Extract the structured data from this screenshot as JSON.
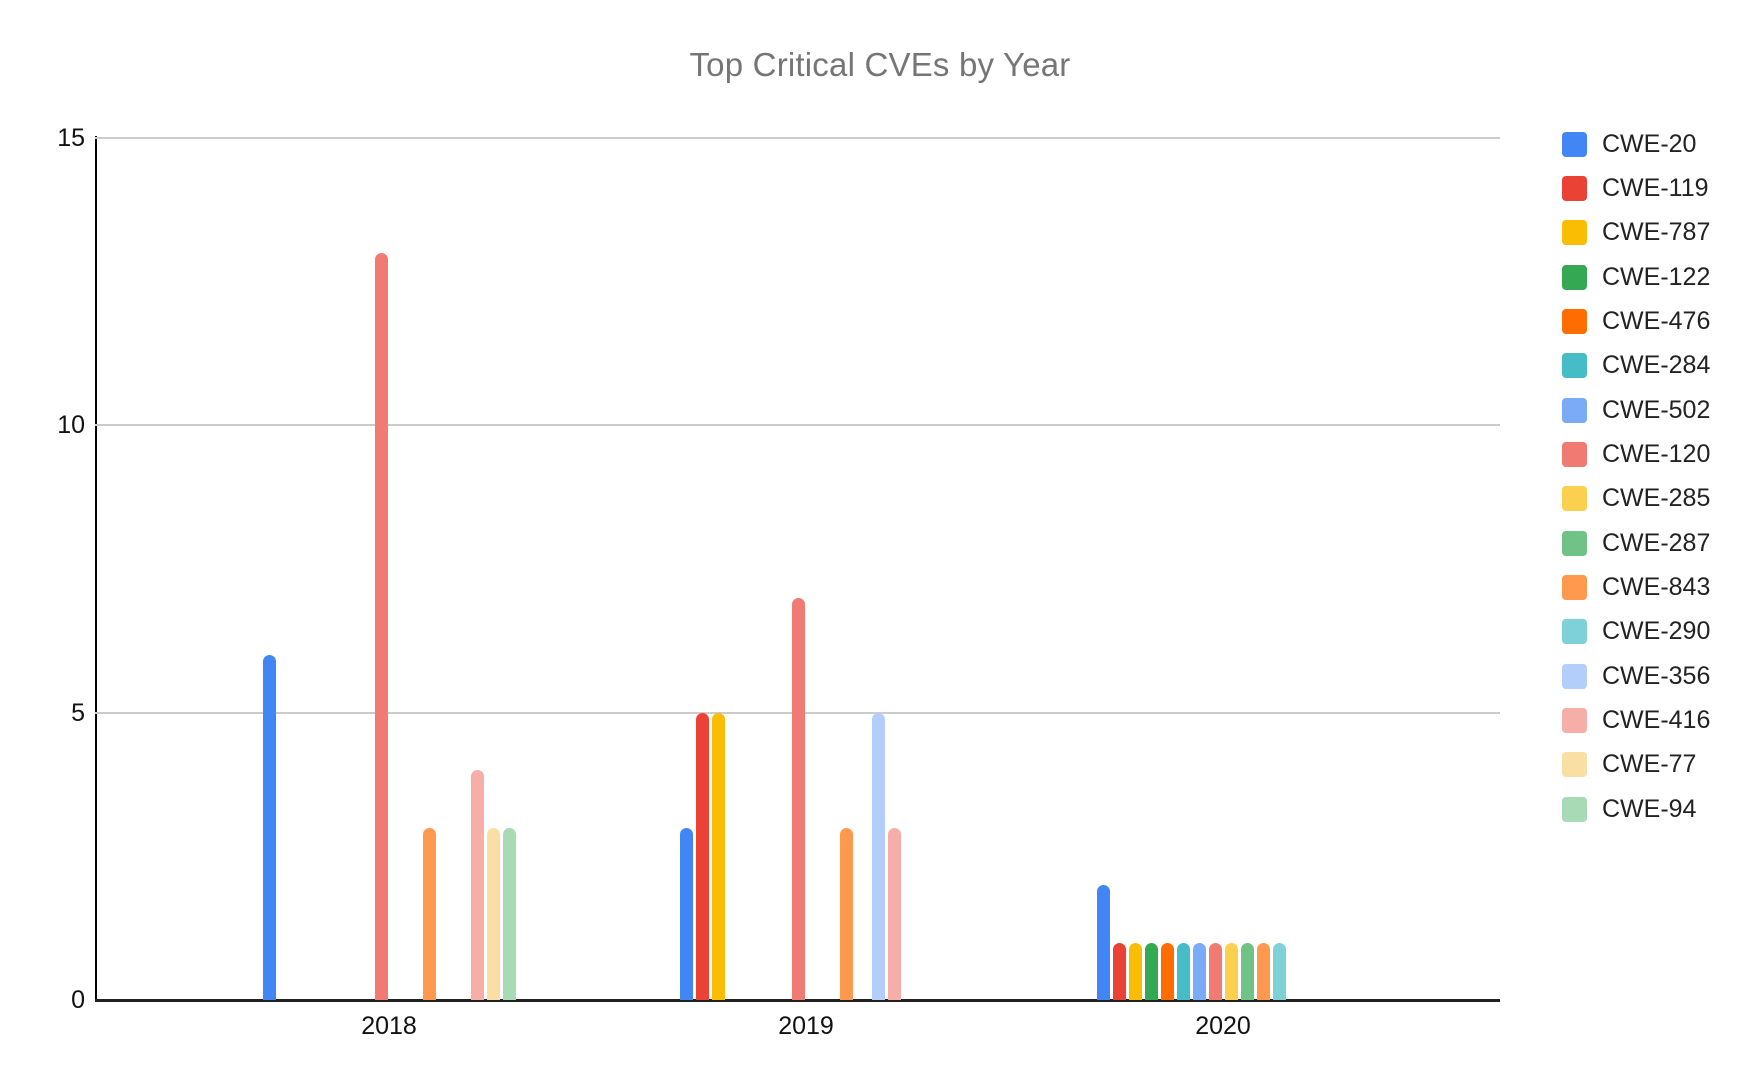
{
  "title": "Top Critical CVEs by Year",
  "chart_data": {
    "type": "bar",
    "title": "Top Critical CVEs by Year",
    "xlabel": "",
    "ylabel": "",
    "ylim": [
      0,
      15
    ],
    "yticks": [
      0,
      5,
      10,
      15
    ],
    "grid": true,
    "legend_position": "right",
    "categories": [
      "2018",
      "2019",
      "2020"
    ],
    "series": [
      {
        "name": "CWE-20",
        "color": "#4285F4",
        "values": [
          6,
          3,
          2
        ]
      },
      {
        "name": "CWE-119",
        "color": "#EA4335",
        "values": [
          0,
          5,
          1
        ]
      },
      {
        "name": "CWE-787",
        "color": "#FBBC04",
        "values": [
          0,
          5,
          1
        ]
      },
      {
        "name": "CWE-122",
        "color": "#34A853",
        "values": [
          0,
          0,
          1
        ]
      },
      {
        "name": "CWE-476",
        "color": "#FF6D01",
        "values": [
          0,
          0,
          1
        ]
      },
      {
        "name": "CWE-284",
        "color": "#46BDC6",
        "values": [
          0,
          0,
          1
        ]
      },
      {
        "name": "CWE-502",
        "color": "#7BAAF7",
        "values": [
          0,
          0,
          1
        ]
      },
      {
        "name": "CWE-120",
        "color": "#F07B72",
        "values": [
          13,
          7,
          1
        ]
      },
      {
        "name": "CWE-285",
        "color": "#FCD04F",
        "values": [
          0,
          0,
          1
        ]
      },
      {
        "name": "CWE-287",
        "color": "#71C287",
        "values": [
          0,
          0,
          1
        ]
      },
      {
        "name": "CWE-843",
        "color": "#FF994D",
        "values": [
          3,
          3,
          1
        ]
      },
      {
        "name": "CWE-290",
        "color": "#7ED1D7",
        "values": [
          0,
          0,
          1
        ]
      },
      {
        "name": "CWE-356",
        "color": "#B3CEFB",
        "values": [
          0,
          5,
          0
        ]
      },
      {
        "name": "CWE-416",
        "color": "#F6AEA9",
        "values": [
          4,
          3,
          0
        ]
      },
      {
        "name": "CWE-77",
        "color": "#FADFA5",
        "values": [
          3,
          0,
          0
        ]
      },
      {
        "name": "CWE-94",
        "color": "#A8DAB5",
        "values": [
          3,
          0,
          0
        ]
      }
    ]
  }
}
